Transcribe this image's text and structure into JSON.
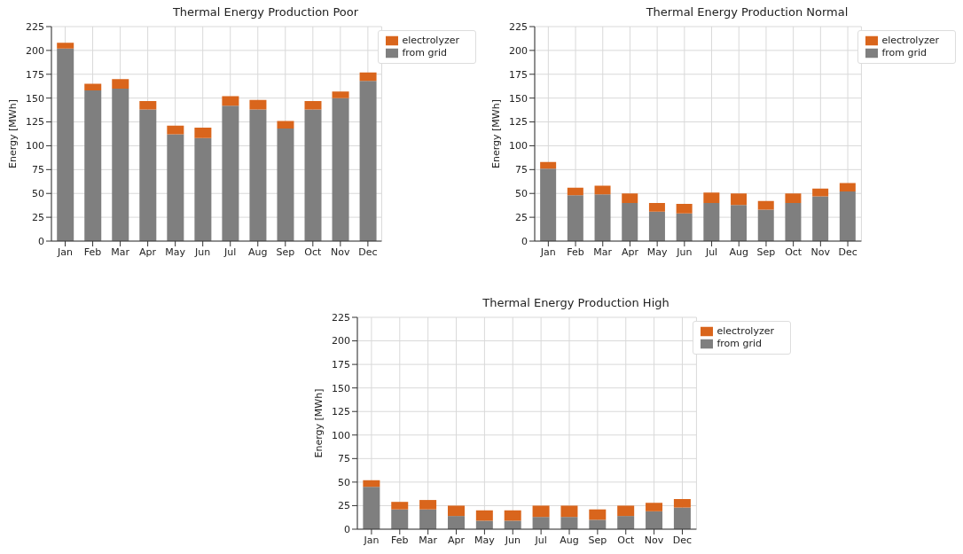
{
  "chart_data": [
    {
      "type": "bar",
      "title": "Thermal Energy Production Poor",
      "ylabel": "Energy [MWh]",
      "categories": [
        "Jan",
        "Feb",
        "Mar",
        "Apr",
        "May",
        "Jun",
        "Jul",
        "Aug",
        "Sep",
        "Oct",
        "Nov",
        "Dec"
      ],
      "stacked": true,
      "ylim": [
        0,
        225
      ],
      "yticks": [
        0,
        25,
        50,
        75,
        100,
        125,
        150,
        175,
        200,
        225
      ],
      "grid": true,
      "legend": "top right",
      "series": [
        {
          "name": "from grid",
          "color": "#7f7f7f",
          "values": [
            202,
            158,
            160,
            138,
            112,
            108,
            142,
            138,
            118,
            138,
            150,
            168
          ]
        },
        {
          "name": "electrolyzer",
          "color": "#d9651c",
          "values": [
            6,
            7,
            10,
            9,
            9,
            11,
            10,
            10,
            8,
            9,
            7,
            9
          ]
        }
      ]
    },
    {
      "type": "bar",
      "title": "Thermal Energy Production Normal",
      "ylabel": "Energy [MWh]",
      "categories": [
        "Jan",
        "Feb",
        "Mar",
        "Apr",
        "May",
        "Jun",
        "Jul",
        "Aug",
        "Sep",
        "Oct",
        "Nov",
        "Dec"
      ],
      "stacked": true,
      "ylim": [
        0,
        225
      ],
      "yticks": [
        0,
        25,
        50,
        75,
        100,
        125,
        150,
        175,
        200,
        225
      ],
      "grid": true,
      "legend": "top right",
      "series": [
        {
          "name": "from grid",
          "color": "#7f7f7f",
          "values": [
            76,
            48,
            49,
            40,
            31,
            29,
            40,
            38,
            33,
            40,
            47,
            52
          ]
        },
        {
          "name": "electrolyzer",
          "color": "#d9651c",
          "values": [
            7,
            8,
            9,
            10,
            9,
            10,
            11,
            12,
            9,
            10,
            8,
            9
          ]
        }
      ]
    },
    {
      "type": "bar",
      "title": "Thermal Energy Production High",
      "ylabel": "Energy [MWh]",
      "categories": [
        "Jan",
        "Feb",
        "Mar",
        "Apr",
        "May",
        "Jun",
        "Jul",
        "Aug",
        "Sep",
        "Oct",
        "Nov",
        "Dec"
      ],
      "stacked": true,
      "ylim": [
        0,
        225
      ],
      "yticks": [
        0,
        25,
        50,
        75,
        100,
        125,
        150,
        175,
        200,
        225
      ],
      "grid": true,
      "legend": "top right",
      "series": [
        {
          "name": "from grid",
          "color": "#7f7f7f",
          "values": [
            45,
            21,
            21,
            14,
            9,
            9,
            13,
            13,
            10,
            14,
            19,
            23
          ]
        },
        {
          "name": "electrolyzer",
          "color": "#d9651c",
          "values": [
            7,
            8,
            10,
            11,
            11,
            11,
            12,
            12,
            11,
            11,
            9,
            9
          ]
        }
      ]
    }
  ]
}
